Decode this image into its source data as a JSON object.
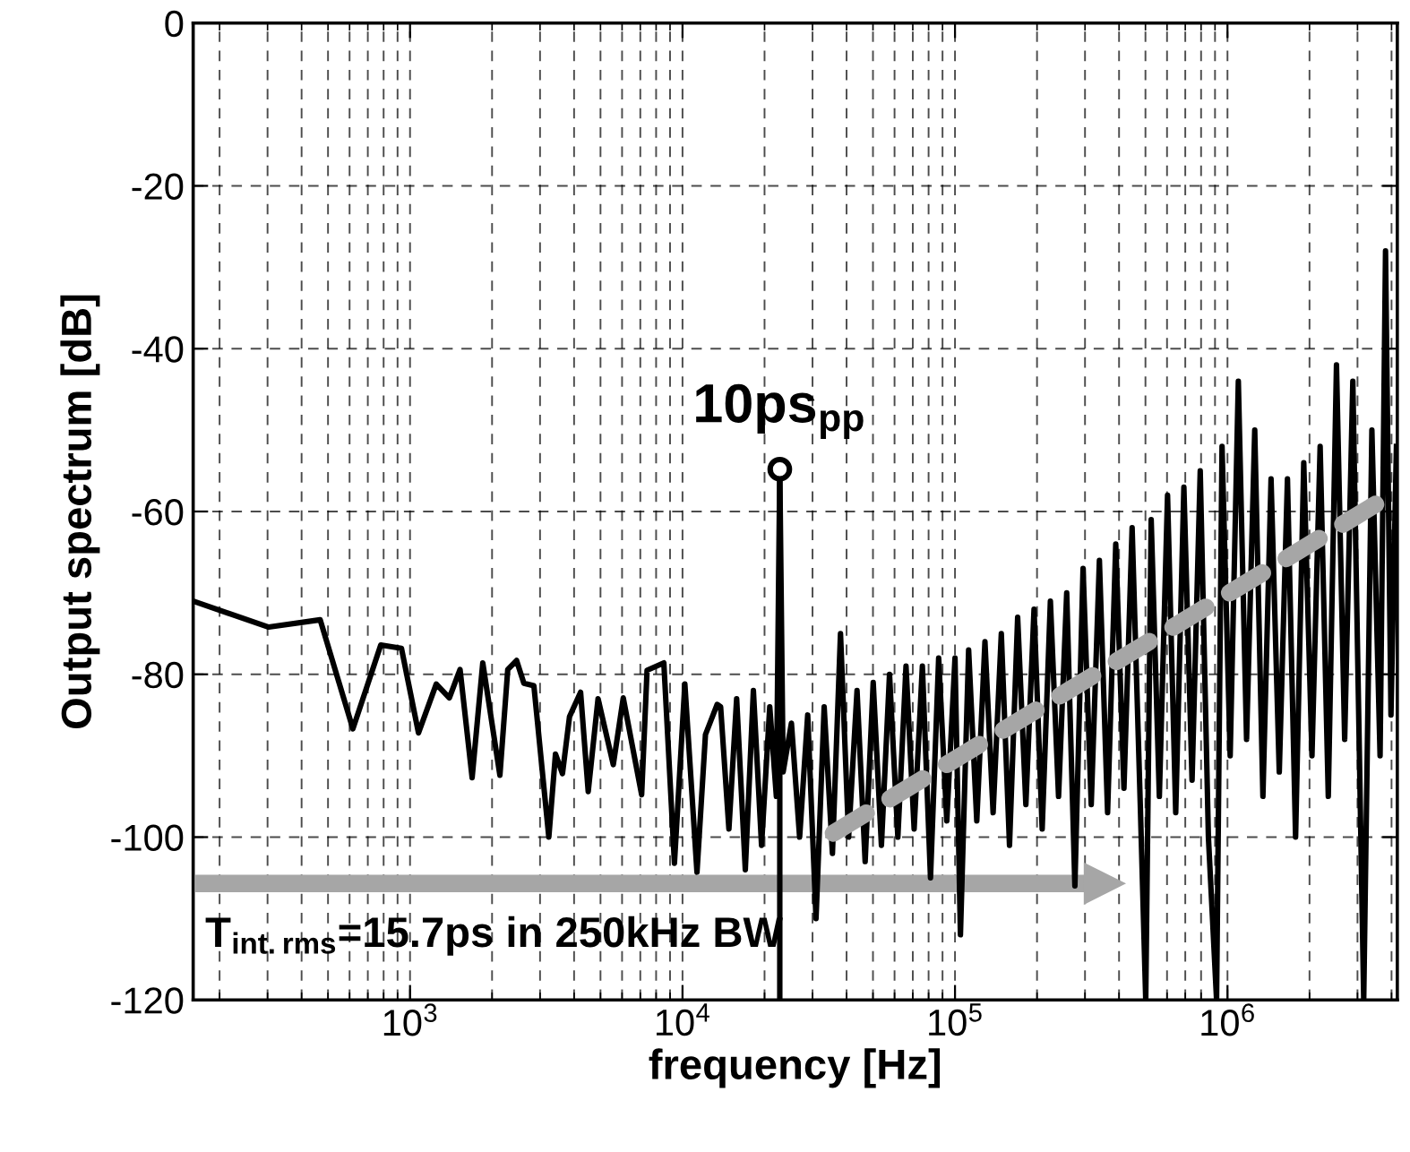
{
  "chart_data": {
    "type": "line",
    "xlabel": "frequency [Hz]",
    "ylabel": "Output spectrum [dB]",
    "log": "x",
    "xlim": [
      160,
      4200000
    ],
    "ylim": [
      -120,
      0
    ],
    "xticks": [
      {
        "value": 1000,
        "label": "10$^{3}$"
      },
      {
        "value": 10000,
        "label": "10$^{4}$"
      },
      {
        "value": 100000,
        "label": "10$^{5}$"
      },
      {
        "value": 1000000,
        "label": "10$^{6}$"
      }
    ],
    "yticks": [
      -120,
      -100,
      -80,
      -60,
      -40,
      -20,
      0
    ],
    "grid": true,
    "legend": false,
    "series": [
      {
        "color": "#000000",
        "marker": "none",
        "line_style": "solid",
        "x": [
          163,
          303,
          468,
          617,
          781,
          930,
          1074,
          1248,
          1394,
          1526,
          1690,
          1849,
          2137,
          2284,
          2460,
          2617,
          2848,
          3231,
          3418,
          3626,
          3849,
          4226,
          4507,
          4898,
          5571,
          6060,
          7080,
          7411,
          8540,
          9340,
          10200,
          11300,
          12140,
          13400,
          13800,
          14800,
          15800,
          17000,
          18200,
          19500,
          20900,
          22100,
          22750,
          23400,
          25100,
          26900,
          28800,
          30900,
          33100,
          35500,
          38000,
          40700,
          43700,
          46800,
          50100,
          53700,
          57500,
          61700,
          66100,
          70800,
          75900,
          81300,
          87100,
          93300,
          100000,
          104700,
          112200,
          120200,
          128800,
          138000,
          147900,
          158500,
          169800,
          182000,
          195000,
          208900,
          223900,
          239900,
          257000,
          275400,
          295100,
          316200,
          338800,
          363100,
          389000,
          416900,
          446700,
          478600,
          501200,
          524800,
          562300,
          602600,
          645700,
          691800,
          741300,
          794300,
          851100,
          912000,
          955000,
          1023000,
          1096000,
          1175000,
          1259000,
          1349000,
          1445000,
          1549000,
          1660000,
          1778000,
          1905000,
          2042000,
          2188000,
          2344000,
          2512000,
          2692000,
          2884000,
          3162000,
          3388000,
          3631000,
          3802000,
          3981000,
          4169000
        ],
        "values": [
          -71.1,
          -74.2,
          -73.3,
          -86.7,
          -76.4,
          -76.8,
          -87.2,
          -81.2,
          -82.9,
          -79.4,
          -92.7,
          -78.6,
          -92.4,
          -79.4,
          -78.3,
          -81.1,
          -81.4,
          -100,
          -89.8,
          -92.2,
          -85.2,
          -82.2,
          -94.4,
          -83,
          -91.1,
          -82.9,
          -94.8,
          -79.5,
          -78.6,
          -103.2,
          -81.2,
          -104.3,
          -87.4,
          -83.7,
          -84,
          -99,
          -83,
          -104,
          -82,
          -101,
          -84,
          -95,
          -54.8,
          -92,
          -86,
          -100,
          -85,
          -110,
          -84,
          -102,
          -75,
          -100,
          -82,
          -103,
          -81,
          -101,
          -80,
          -100,
          -79,
          -99,
          -79,
          -105,
          -78,
          -98,
          -78,
          -112,
          -77,
          -98,
          -76,
          -97,
          -75,
          -101,
          -73,
          -96,
          -72,
          -99,
          -71,
          -95,
          -70,
          -106,
          -67,
          -96,
          -66,
          -97,
          -64,
          -94,
          -62,
          -96,
          -120,
          -61,
          -95,
          -58,
          -97,
          -57,
          -93,
          -55,
          -100,
          -120,
          -52,
          -90,
          -44,
          -88,
          -50,
          -95,
          -56,
          -92,
          -56,
          -100,
          -54,
          -90,
          -52,
          -95,
          -42,
          -88,
          -44,
          -120,
          -50,
          -90,
          -28,
          -85,
          -52
        ]
      },
      {
        "type": "scatter",
        "color": "#000000",
        "marker": "circle",
        "x": [
          22750
        ],
        "values": [
          -54.8
        ]
      },
      {
        "type": "line",
        "color": "#a6a6a6",
        "marker": "none",
        "line_style": "dashed",
        "x": [
          35800,
          4200000
        ],
        "values": [
          -99.5,
          -57.5
        ]
      },
      {
        "type": "line",
        "color": "#a6a6a6",
        "marker": "triangle",
        "line_style": "solid",
        "x": [
          163,
          355000
        ],
        "values": [
          -105.7,
          -105.7
        ]
      }
    ],
    "annotations": [
      {
        "text": "10ps$_{pp}$",
        "x": 22750,
        "y": -54.8
      },
      "T$_{int.rms}$=15.7ps in 250kHz BW"
    ]
  }
}
